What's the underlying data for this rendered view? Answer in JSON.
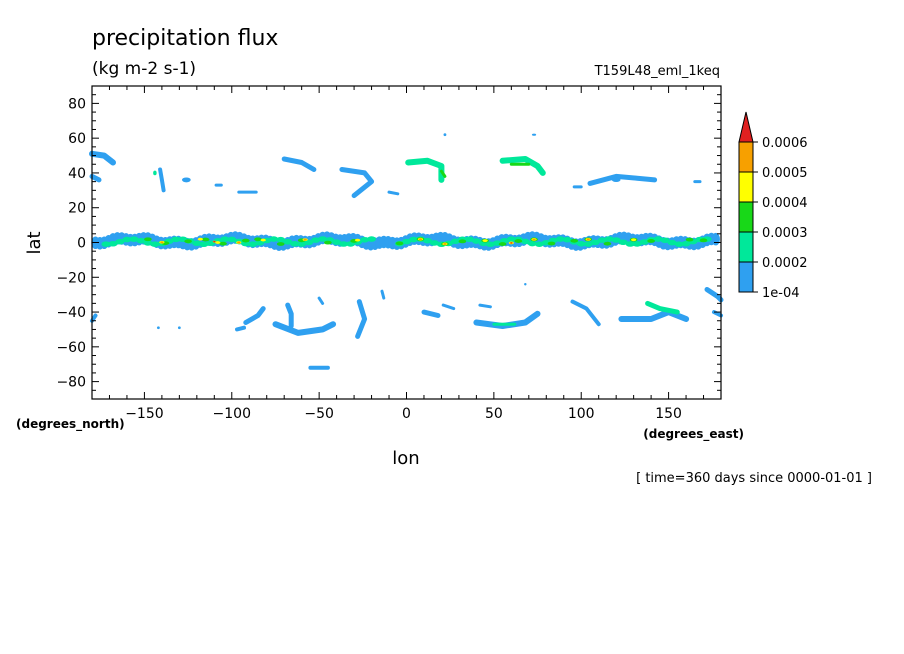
{
  "chart_data": {
    "type": "heatmap",
    "title": "precipitation flux",
    "units": "(kg m-2 s-1)",
    "run_label": "T159L48_eml_1keq",
    "xlabel": "lon",
    "ylabel": "lat",
    "x_units": "(degrees_east)",
    "y_units": "(degrees_north)",
    "xlim": [
      -180,
      180
    ],
    "ylim": [
      -90,
      90
    ],
    "x_ticks": [
      -150,
      -100,
      -50,
      0,
      50,
      100,
      150
    ],
    "y_ticks": [
      80,
      60,
      40,
      20,
      0,
      -20,
      -40,
      -60,
      -80
    ],
    "x_tick_labels": [
      "−150",
      "−100",
      "−50",
      "0",
      "50",
      "100",
      "150"
    ],
    "y_tick_labels": [
      "80",
      "60",
      "40",
      "20",
      "0",
      "−20",
      "−40",
      "−60",
      "−80"
    ],
    "time_note": "[ time=360 days since 0000-01-01 ]",
    "colorbar": {
      "levels": [
        0.0001,
        0.0002,
        0.0003,
        0.0004,
        0.0005,
        0.0006
      ],
      "labels": [
        "1e-04",
        "0.0002",
        "0.0003",
        "0.0004",
        "0.0005",
        "0.0006"
      ],
      "colors": [
        "#2fa0f0",
        "#00e89a",
        "#18d818",
        "#ffff00",
        "#f7a000",
        "#e02020"
      ],
      "extend": "max"
    },
    "features": [
      {
        "band": "itcz",
        "lon": [
          -180,
          180
        ],
        "lat": [
          -4,
          5
        ],
        "max_level": 0.0006
      },
      {
        "lon": -172,
        "lat": 45,
        "level": 0.0001
      },
      {
        "lon": -140,
        "lat": 34,
        "level": 0.0001
      },
      {
        "lon": -70,
        "lat": 45,
        "level": 0.0001
      },
      {
        "lon": -32,
        "lat": 37,
        "level": 0.0001
      },
      {
        "lon": 18,
        "lat": 43,
        "level": 0.0002
      },
      {
        "lon": 68,
        "lat": 44,
        "level": 0.0002
      },
      {
        "lon": 128,
        "lat": 36,
        "level": 0.0001
      },
      {
        "lon": -90,
        "lat": -44,
        "level": 0.0001
      },
      {
        "lon": -55,
        "lat": -48,
        "level": 0.0001
      },
      {
        "lon": -23,
        "lat": -44,
        "level": 0.0001
      },
      {
        "lon": 55,
        "lat": -44,
        "level": 0.0001
      },
      {
        "lon": 150,
        "lat": -40,
        "level": 0.0002
      },
      {
        "lon": -50,
        "lat": -72,
        "level": 0.0001
      }
    ]
  }
}
